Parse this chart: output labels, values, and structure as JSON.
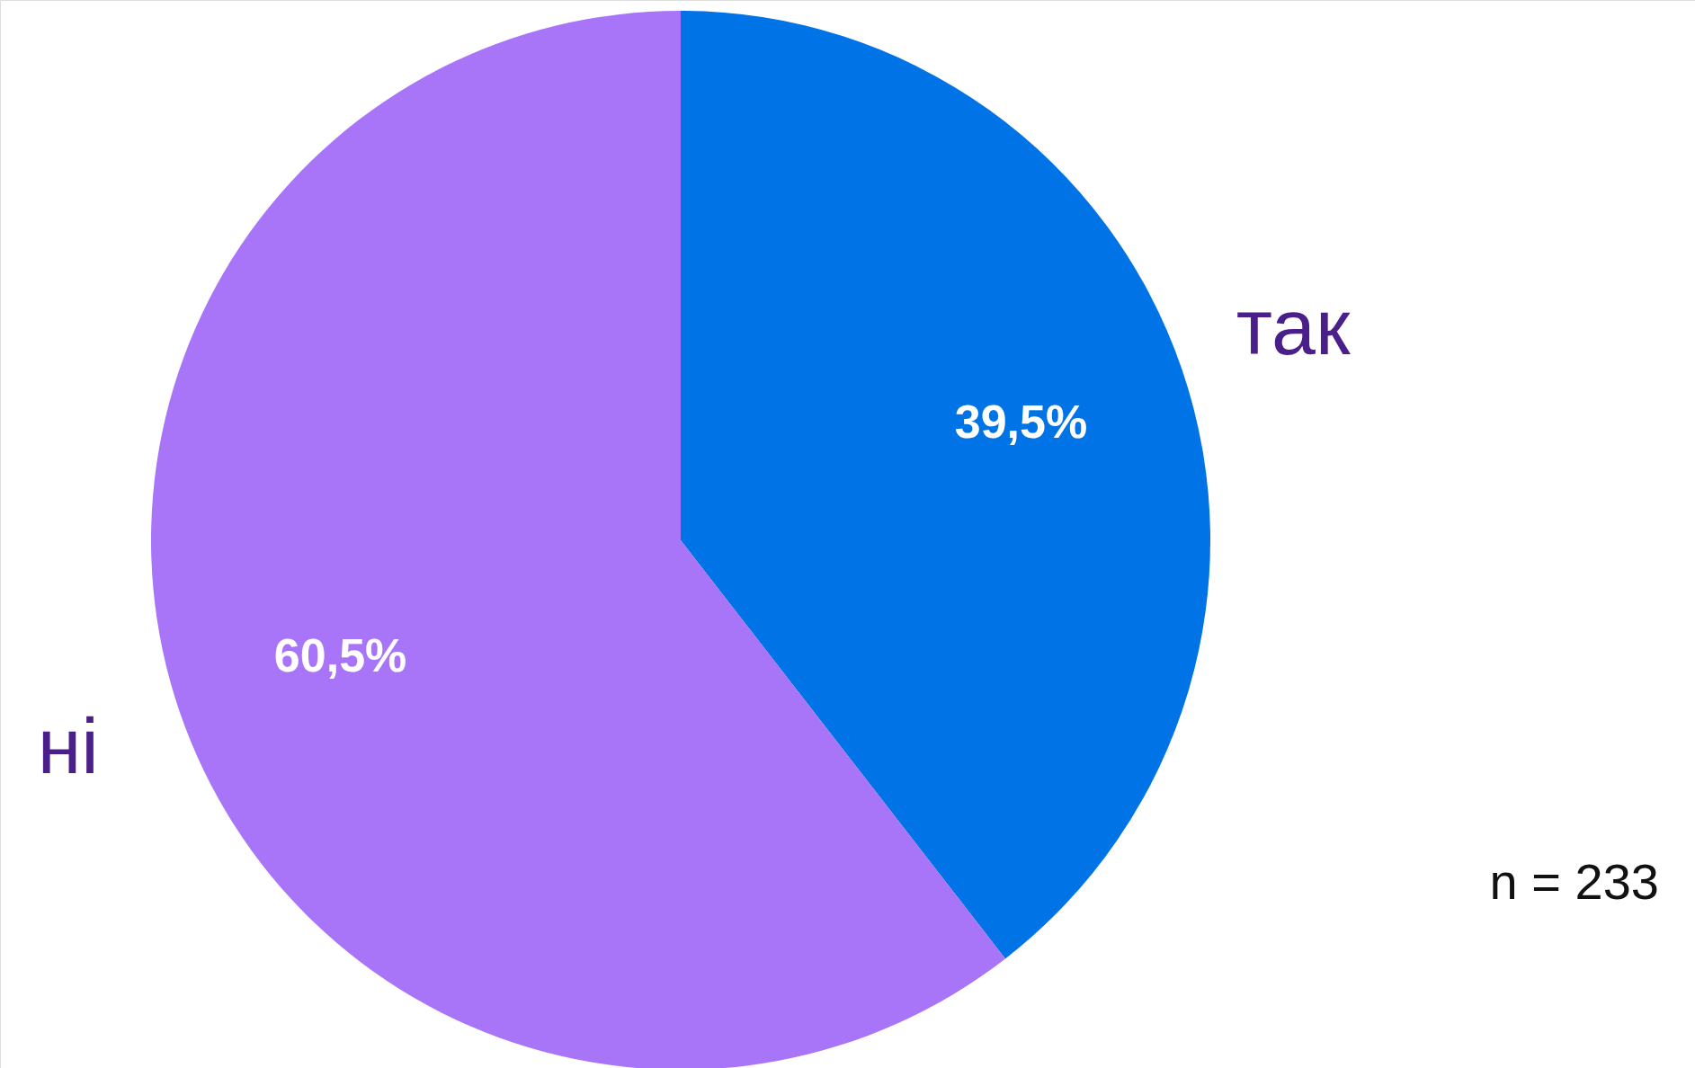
{
  "chart_data": {
    "type": "pie",
    "categories": [
      "так",
      "ні"
    ],
    "values": [
      39.5,
      60.5
    ],
    "colors": [
      "#0073e6",
      "#a875f9"
    ],
    "value_labels": [
      "39,5%",
      "60,5%"
    ],
    "annotations": [
      "n = 233"
    ]
  }
}
